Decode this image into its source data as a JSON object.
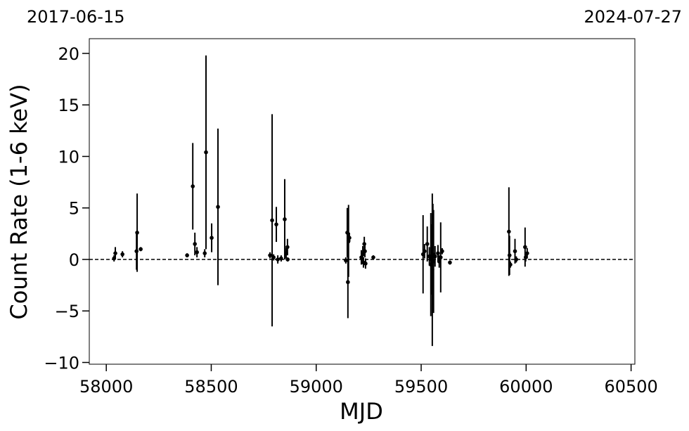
{
  "chart_data": {
    "type": "scatter",
    "x_label": "MJD",
    "y_label": "Count Rate (1-6 keV)",
    "top_left_label": "2017-06-15",
    "top_right_label": "2024-07-27",
    "xlim": [
      57919,
      60518
    ],
    "ylim": [
      -10.17,
      21.43
    ],
    "xticks": [
      58000,
      58500,
      59000,
      59500,
      60000,
      60500
    ],
    "yticks": [
      {
        "value": -10,
        "label": "−10"
      },
      {
        "value": -5,
        "label": "−5"
      },
      0,
      5,
      10,
      15,
      20
    ],
    "hline": 0,
    "series": [
      {
        "color": "#000000",
        "x": [
          58037,
          58043,
          58077,
          58144,
          58147,
          58164,
          58385,
          58412,
          58422,
          58432,
          58469,
          58475,
          58502,
          58532,
          58780,
          58790,
          58797,
          58810,
          58817,
          58833,
          58850,
          58857,
          58863,
          58864,
          59141,
          59148,
          59151,
          59154,
          59158,
          59215,
          59222,
          59225,
          59229,
          59232,
          59235,
          59272,
          59509,
          59516,
          59529,
          59539,
          59546,
          59549,
          59553,
          59556,
          59559,
          59566,
          59580,
          59586,
          59593,
          59600,
          59637,
          59918,
          59921,
          59925,
          59947,
          59953,
          59995,
          59998,
          60005
        ],
        "values": [
          0.1,
          0.6,
          0.5,
          0.8,
          2.6,
          1.0,
          0.4,
          7.1,
          1.5,
          0.7,
          0.6,
          10.4,
          2.1,
          5.1,
          0.4,
          3.8,
          0.2,
          3.4,
          0.0,
          0.1,
          3.9,
          0.6,
          1.2,
          0.0,
          -0.1,
          2.6,
          -2.2,
          1.8,
          2.1,
          0.2,
          0.5,
          -0.3,
          1.5,
          0.8,
          -0.4,
          0.2,
          0.5,
          0.8,
          1.5,
          0.3,
          -0.5,
          0.0,
          -1.0,
          0.5,
          -0.2,
          0.3,
          0.6,
          -0.2,
          0.2,
          0.8,
          -0.3,
          2.7,
          0.4,
          -0.5,
          0.8,
          0.0,
          1.2,
          0.2,
          0.6
        ],
        "errors": [
          0.3,
          0.6,
          0.3,
          1.8,
          3.8,
          0.2,
          0.2,
          4.2,
          1.1,
          0.5,
          0.4,
          9.4,
          1.4,
          7.6,
          0.3,
          10.3,
          0.3,
          1.7,
          0.4,
          0.3,
          3.9,
          0.5,
          0.8,
          0.2,
          0.3,
          2.4,
          3.5,
          3.5,
          0.5,
          0.7,
          0.8,
          0.5,
          0.7,
          0.6,
          0.5,
          0.2,
          3.8,
          0.7,
          1.7,
          0.9,
          5.0,
          3.4,
          7.4,
          4.9,
          5.0,
          1.0,
          0.8,
          0.6,
          3.4,
          0.3,
          0.2,
          4.3,
          1.9,
          0.3,
          1.2,
          0.3,
          1.9,
          0.4,
          0.5
        ]
      }
    ]
  }
}
